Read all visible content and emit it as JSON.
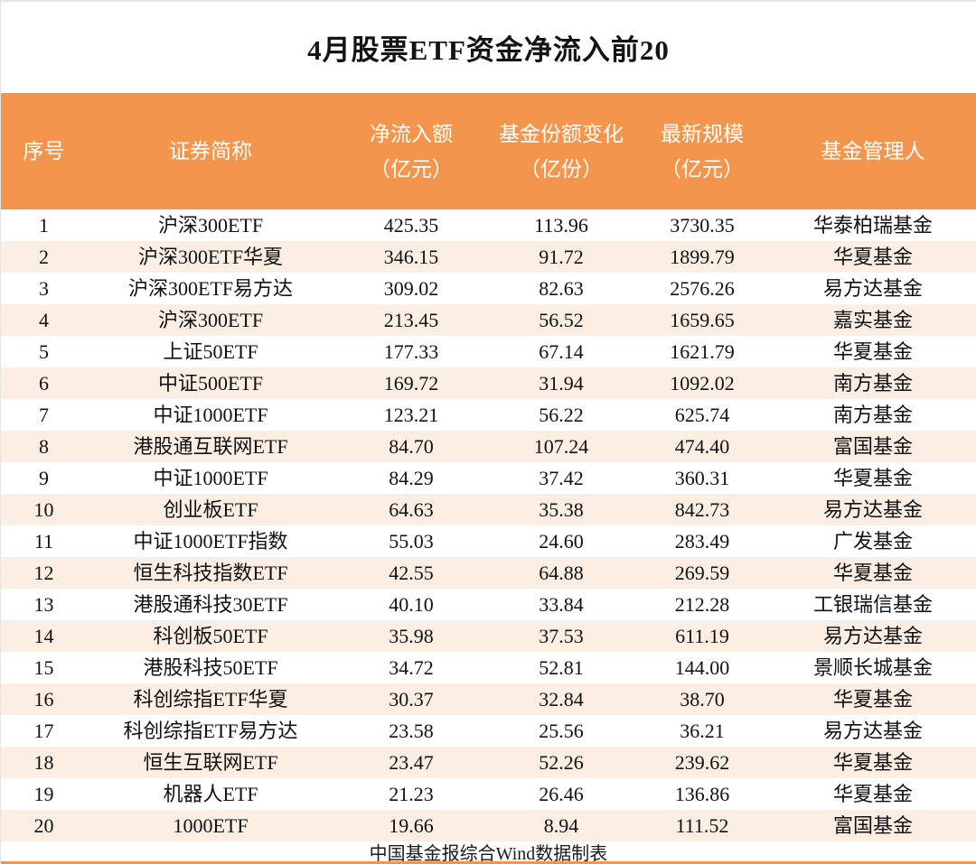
{
  "title": "4月股票ETF资金净流入前20",
  "footer": "中国基金报综合Wind数据制表",
  "colors": {
    "header_bg": "#F3954C",
    "row_alt_bg": "#FCEEE2",
    "header_text": "#FFFFFF",
    "bottom_bar": "#F3954C"
  },
  "chart_data": {
    "type": "table",
    "title": "4月股票ETF资金净流入前20",
    "columns": [
      "序号",
      "证券简称",
      "净流入额（亿元）",
      "基金份额变化（亿份）",
      "最新规模（亿元）",
      "基金管理人"
    ],
    "source_note": "中国基金报综合Wind数据制表"
  },
  "table": {
    "columns": [
      {
        "label1": "序号",
        "label2": ""
      },
      {
        "label1": "证券简称",
        "label2": ""
      },
      {
        "label1": "净流入额",
        "label2": "（亿元）"
      },
      {
        "label1": "基金份额变化",
        "label2": "（亿份）"
      },
      {
        "label1": "最新规模",
        "label2": "（亿元）"
      },
      {
        "label1": "基金管理人",
        "label2": ""
      }
    ],
    "rows": [
      [
        "1",
        "沪深300ETF",
        "425.35",
        "113.96",
        "3730.35",
        "华泰柏瑞基金"
      ],
      [
        "2",
        "沪深300ETF华夏",
        "346.15",
        "91.72",
        "1899.79",
        "华夏基金"
      ],
      [
        "3",
        "沪深300ETF易方达",
        "309.02",
        "82.63",
        "2576.26",
        "易方达基金"
      ],
      [
        "4",
        "沪深300ETF",
        "213.45",
        "56.52",
        "1659.65",
        "嘉实基金"
      ],
      [
        "5",
        "上证50ETF",
        "177.33",
        "67.14",
        "1621.79",
        "华夏基金"
      ],
      [
        "6",
        "中证500ETF",
        "169.72",
        "31.94",
        "1092.02",
        "南方基金"
      ],
      [
        "7",
        "中证1000ETF",
        "123.21",
        "56.22",
        "625.74",
        "南方基金"
      ],
      [
        "8",
        "港股通互联网ETF",
        "84.70",
        "107.24",
        "474.40",
        "富国基金"
      ],
      [
        "9",
        "中证1000ETF",
        "84.29",
        "37.42",
        "360.31",
        "华夏基金"
      ],
      [
        "10",
        "创业板ETF",
        "64.63",
        "35.38",
        "842.73",
        "易方达基金"
      ],
      [
        "11",
        "中证1000ETF指数",
        "55.03",
        "24.60",
        "283.49",
        "广发基金"
      ],
      [
        "12",
        "恒生科技指数ETF",
        "42.55",
        "64.88",
        "269.59",
        "华夏基金"
      ],
      [
        "13",
        "港股通科技30ETF",
        "40.10",
        "33.84",
        "212.28",
        "工银瑞信基金"
      ],
      [
        "14",
        "科创板50ETF",
        "35.98",
        "37.53",
        "611.19",
        "易方达基金"
      ],
      [
        "15",
        "港股科技50ETF",
        "34.72",
        "52.81",
        "144.00",
        "景顺长城基金"
      ],
      [
        "16",
        "科创综指ETF华夏",
        "30.37",
        "32.84",
        "38.70",
        "华夏基金"
      ],
      [
        "17",
        "科创综指ETF易方达",
        "23.58",
        "25.56",
        "36.21",
        "易方达基金"
      ],
      [
        "18",
        "恒生互联网ETF",
        "23.47",
        "52.26",
        "239.62",
        "华夏基金"
      ],
      [
        "19",
        "机器人ETF",
        "21.23",
        "26.46",
        "136.86",
        "华夏基金"
      ],
      [
        "20",
        "1000ETF",
        "19.66",
        "8.94",
        "111.52",
        "富国基金"
      ]
    ]
  }
}
